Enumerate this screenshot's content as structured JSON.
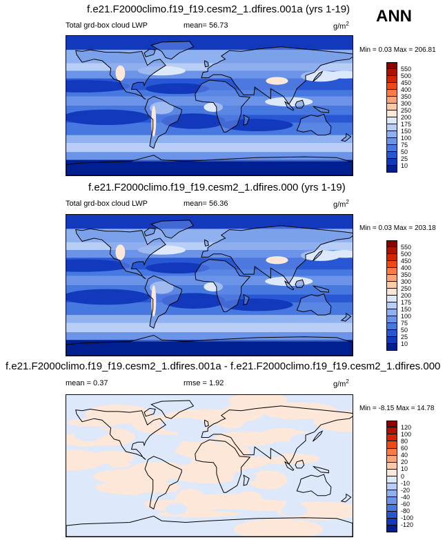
{
  "season": "ANN",
  "panels": [
    {
      "title": "f.e21.F2000climo.f19_f19.cesm2_1.dfires.001a (yrs 1-19)",
      "field_label": "Total grd-box cloud LWP",
      "stat1": "mean=  56.73",
      "stat2": "",
      "units_base": "g/m",
      "units_exp": "2",
      "minmax": "Min =   0.03 Max = 206.81",
      "levels": [
        "550",
        "500",
        "450",
        "400",
        "350",
        "300",
        "250",
        "200",
        "175",
        "150",
        "100",
        "75",
        "50",
        "25",
        "10"
      ],
      "colors": [
        "#8c0000",
        "#b01200",
        "#d42400",
        "#ee4a16",
        "#ff7a44",
        "#ffa57a",
        "#ffccab",
        "#fde7d8",
        "#dde8fa",
        "#b9cef6",
        "#8fb1ef",
        "#6b94e8",
        "#4778df",
        "#2857d4",
        "#1238bc",
        "#001f90"
      ],
      "field_type": "lwp"
    },
    {
      "title": "f.e21.F2000climo.f19_f19.cesm2_1.dfires.000 (yrs 1-19)",
      "field_label": "Total grd-box cloud LWP",
      "stat1": "mean=  56.36",
      "stat2": "",
      "units_base": "g/m",
      "units_exp": "2",
      "minmax": "Min =   0.03 Max = 203.18",
      "levels": [
        "550",
        "500",
        "450",
        "400",
        "350",
        "300",
        "250",
        "200",
        "175",
        "150",
        "100",
        "75",
        "50",
        "25",
        "10"
      ],
      "colors": [
        "#8c0000",
        "#b01200",
        "#d42400",
        "#ee4a16",
        "#ff7a44",
        "#ffa57a",
        "#ffccab",
        "#fde7d8",
        "#dde8fa",
        "#b9cef6",
        "#8fb1ef",
        "#6b94e8",
        "#4778df",
        "#2857d4",
        "#1238bc",
        "#001f90"
      ],
      "field_type": "lwp"
    },
    {
      "title": "f.e21.F2000climo.f19_f19.cesm2_1.dfires.001a - f.e21.F2000climo.f19_f19.cesm2_1.dfires.000",
      "field_label": "mean =   0.37",
      "stat1": "rmse =   1.92",
      "stat2": "",
      "units_base": "g/m",
      "units_exp": "2",
      "minmax": "Min =  -8.15 Max =  14.78",
      "levels": [
        "120",
        "100",
        "80",
        "60",
        "40",
        "20",
        "10",
        "0",
        "-10",
        "-20",
        "-40",
        "-60",
        "-80",
        "-100",
        "-120"
      ],
      "colors": [
        "#8c0000",
        "#b01200",
        "#d42400",
        "#ee4a16",
        "#ff7a44",
        "#ffa57a",
        "#ffccab",
        "#fde7d8",
        "#dde8fa",
        "#b9cef6",
        "#8fb1ef",
        "#6b94e8",
        "#4778df",
        "#2857d4",
        "#1238bc",
        "#001f90"
      ],
      "field_type": "diff"
    }
  ],
  "chart_data": [
    {
      "type": "heatmap",
      "title": "f.e21.F2000climo.f19_f19.cesm2_1.dfires.001a (yrs 1-19)",
      "variable": "Total grd-box cloud LWP",
      "units": "g/m2",
      "mean": 56.73,
      "min": 0.03,
      "max": 206.81,
      "contour_levels": [
        10,
        25,
        50,
        75,
        100,
        150,
        175,
        200,
        250,
        300,
        350,
        400,
        450,
        500,
        550
      ]
    },
    {
      "type": "heatmap",
      "title": "f.e21.F2000climo.f19_f19.cesm2_1.dfires.000 (yrs 1-19)",
      "variable": "Total grd-box cloud LWP",
      "units": "g/m2",
      "mean": 56.36,
      "min": 0.03,
      "max": 203.18,
      "contour_levels": [
        10,
        25,
        50,
        75,
        100,
        150,
        175,
        200,
        250,
        300,
        350,
        400,
        450,
        500,
        550
      ]
    },
    {
      "type": "heatmap",
      "title": "f.e21.F2000climo.f19_f19.cesm2_1.dfires.001a - f.e21.F2000climo.f19_f19.cesm2_1.dfires.000",
      "units": "g/m2",
      "mean": 0.37,
      "rmse": 1.92,
      "min": -8.15,
      "max": 14.78,
      "contour_levels": [
        -120,
        -100,
        -80,
        -60,
        -40,
        -20,
        -10,
        0,
        10,
        20,
        40,
        60,
        80,
        100,
        120
      ]
    }
  ]
}
